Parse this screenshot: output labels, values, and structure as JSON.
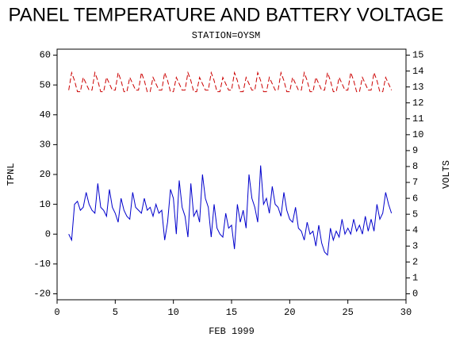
{
  "chart_data": {
    "type": "line",
    "title": "PANEL TEMPERATURE AND BATTERY VOLTAGE",
    "subtitle": "STATION=OYSM",
    "xlabel": "FEB 1999",
    "ylabel": "TPNL",
    "y2label": "VOLTS",
    "xlim": [
      0,
      30
    ],
    "xticks": [
      0,
      5,
      10,
      15,
      20,
      25,
      30
    ],
    "ylim": [
      -22,
      62
    ],
    "yticks": [
      -20,
      -10,
      0,
      10,
      20,
      30,
      40,
      50,
      60
    ],
    "y2lim": [
      -0.375,
      15.375
    ],
    "y2ticks": [
      0,
      1,
      2,
      3,
      4,
      5,
      6,
      7,
      8,
      9,
      10,
      11,
      12,
      13,
      14,
      15
    ],
    "x": [
      1,
      1.25,
      1.5,
      1.75,
      2,
      2.25,
      2.5,
      2.75,
      3,
      3.25,
      3.5,
      3.75,
      4,
      4.25,
      4.5,
      4.75,
      5,
      5.25,
      5.5,
      5.75,
      6,
      6.25,
      6.5,
      6.75,
      7,
      7.25,
      7.5,
      7.75,
      8,
      8.25,
      8.5,
      8.75,
      9,
      9.25,
      9.5,
      9.75,
      10,
      10.25,
      10.5,
      10.75,
      11,
      11.25,
      11.5,
      11.75,
      12,
      12.25,
      12.5,
      12.75,
      13,
      13.25,
      13.5,
      13.75,
      14,
      14.25,
      14.5,
      14.75,
      15,
      15.25,
      15.5,
      15.75,
      16,
      16.25,
      16.5,
      16.75,
      17,
      17.25,
      17.5,
      17.75,
      18,
      18.25,
      18.5,
      18.75,
      19,
      19.25,
      19.5,
      19.75,
      20,
      20.25,
      20.5,
      20.75,
      21,
      21.25,
      21.5,
      21.75,
      22,
      22.25,
      22.5,
      22.75,
      23,
      23.25,
      23.5,
      23.75,
      24,
      24.25,
      24.5,
      24.75,
      25,
      25.25,
      25.5,
      25.75,
      26,
      26.25,
      26.5,
      26.75,
      27,
      27.25,
      27.5,
      27.75,
      28,
      28.25,
      28.5,
      28.75
    ],
    "series": [
      {
        "name": "TPNL",
        "color": "#0000cc",
        "axis": "y",
        "dashed": false,
        "values": [
          0,
          -2,
          10,
          11,
          8,
          9,
          14,
          10,
          8,
          7,
          17,
          9,
          8,
          6,
          15,
          9,
          7,
          4,
          12,
          8,
          6,
          5,
          14,
          9,
          8,
          7,
          12,
          8,
          9,
          6,
          10,
          7,
          8,
          -2,
          4,
          15,
          12,
          0,
          18,
          9,
          6,
          -1,
          17,
          6,
          8,
          4,
          20,
          12,
          9,
          -1,
          10,
          2,
          0,
          -1,
          7,
          2,
          3,
          -5,
          10,
          4,
          8,
          2,
          20,
          12,
          9,
          4,
          23,
          10,
          12,
          7,
          16,
          10,
          9,
          6,
          14,
          8,
          5,
          4,
          9,
          2,
          1,
          -2,
          4,
          0,
          1,
          -4,
          3,
          -3,
          -6,
          -7,
          2,
          -2,
          1,
          -1,
          5,
          0,
          2,
          0,
          5,
          1,
          3,
          0,
          6,
          1,
          5,
          1,
          10,
          5,
          7,
          14,
          10,
          7
        ]
      },
      {
        "name": "VOLTS",
        "color": "#cc0000",
        "axis": "y2",
        "dashed": true,
        "values": [
          12.8,
          13.9,
          13.4,
          12.7,
          12.7,
          13.6,
          13.2,
          12.8,
          12.8,
          13.9,
          13.4,
          12.7,
          12.7,
          13.6,
          13.2,
          12.8,
          12.8,
          13.9,
          13.4,
          12.7,
          12.7,
          13.6,
          13.2,
          12.8,
          12.8,
          13.9,
          13.4,
          12.7,
          12.7,
          13.6,
          13.2,
          12.8,
          12.8,
          13.9,
          13.4,
          12.7,
          12.7,
          13.6,
          13.2,
          12.8,
          12.8,
          13.9,
          13.4,
          12.7,
          12.7,
          13.6,
          13.2,
          12.8,
          12.8,
          13.9,
          13.4,
          12.7,
          12.7,
          13.6,
          13.2,
          12.8,
          12.8,
          13.9,
          13.4,
          12.7,
          12.7,
          13.6,
          13.2,
          12.8,
          12.8,
          13.9,
          13.4,
          12.7,
          12.7,
          13.6,
          13.2,
          12.8,
          12.8,
          13.9,
          13.4,
          12.7,
          12.7,
          13.6,
          13.2,
          12.8,
          12.8,
          13.9,
          13.4,
          12.7,
          12.7,
          13.6,
          13.2,
          12.8,
          12.8,
          13.9,
          13.4,
          12.7,
          12.7,
          13.6,
          13.2,
          12.8,
          12.8,
          13.9,
          13.4,
          12.7,
          12.7,
          13.6,
          13.2,
          12.8,
          12.8,
          13.9,
          13.4,
          12.7,
          12.7,
          13.6,
          13.2,
          12.8
        ]
      }
    ]
  }
}
